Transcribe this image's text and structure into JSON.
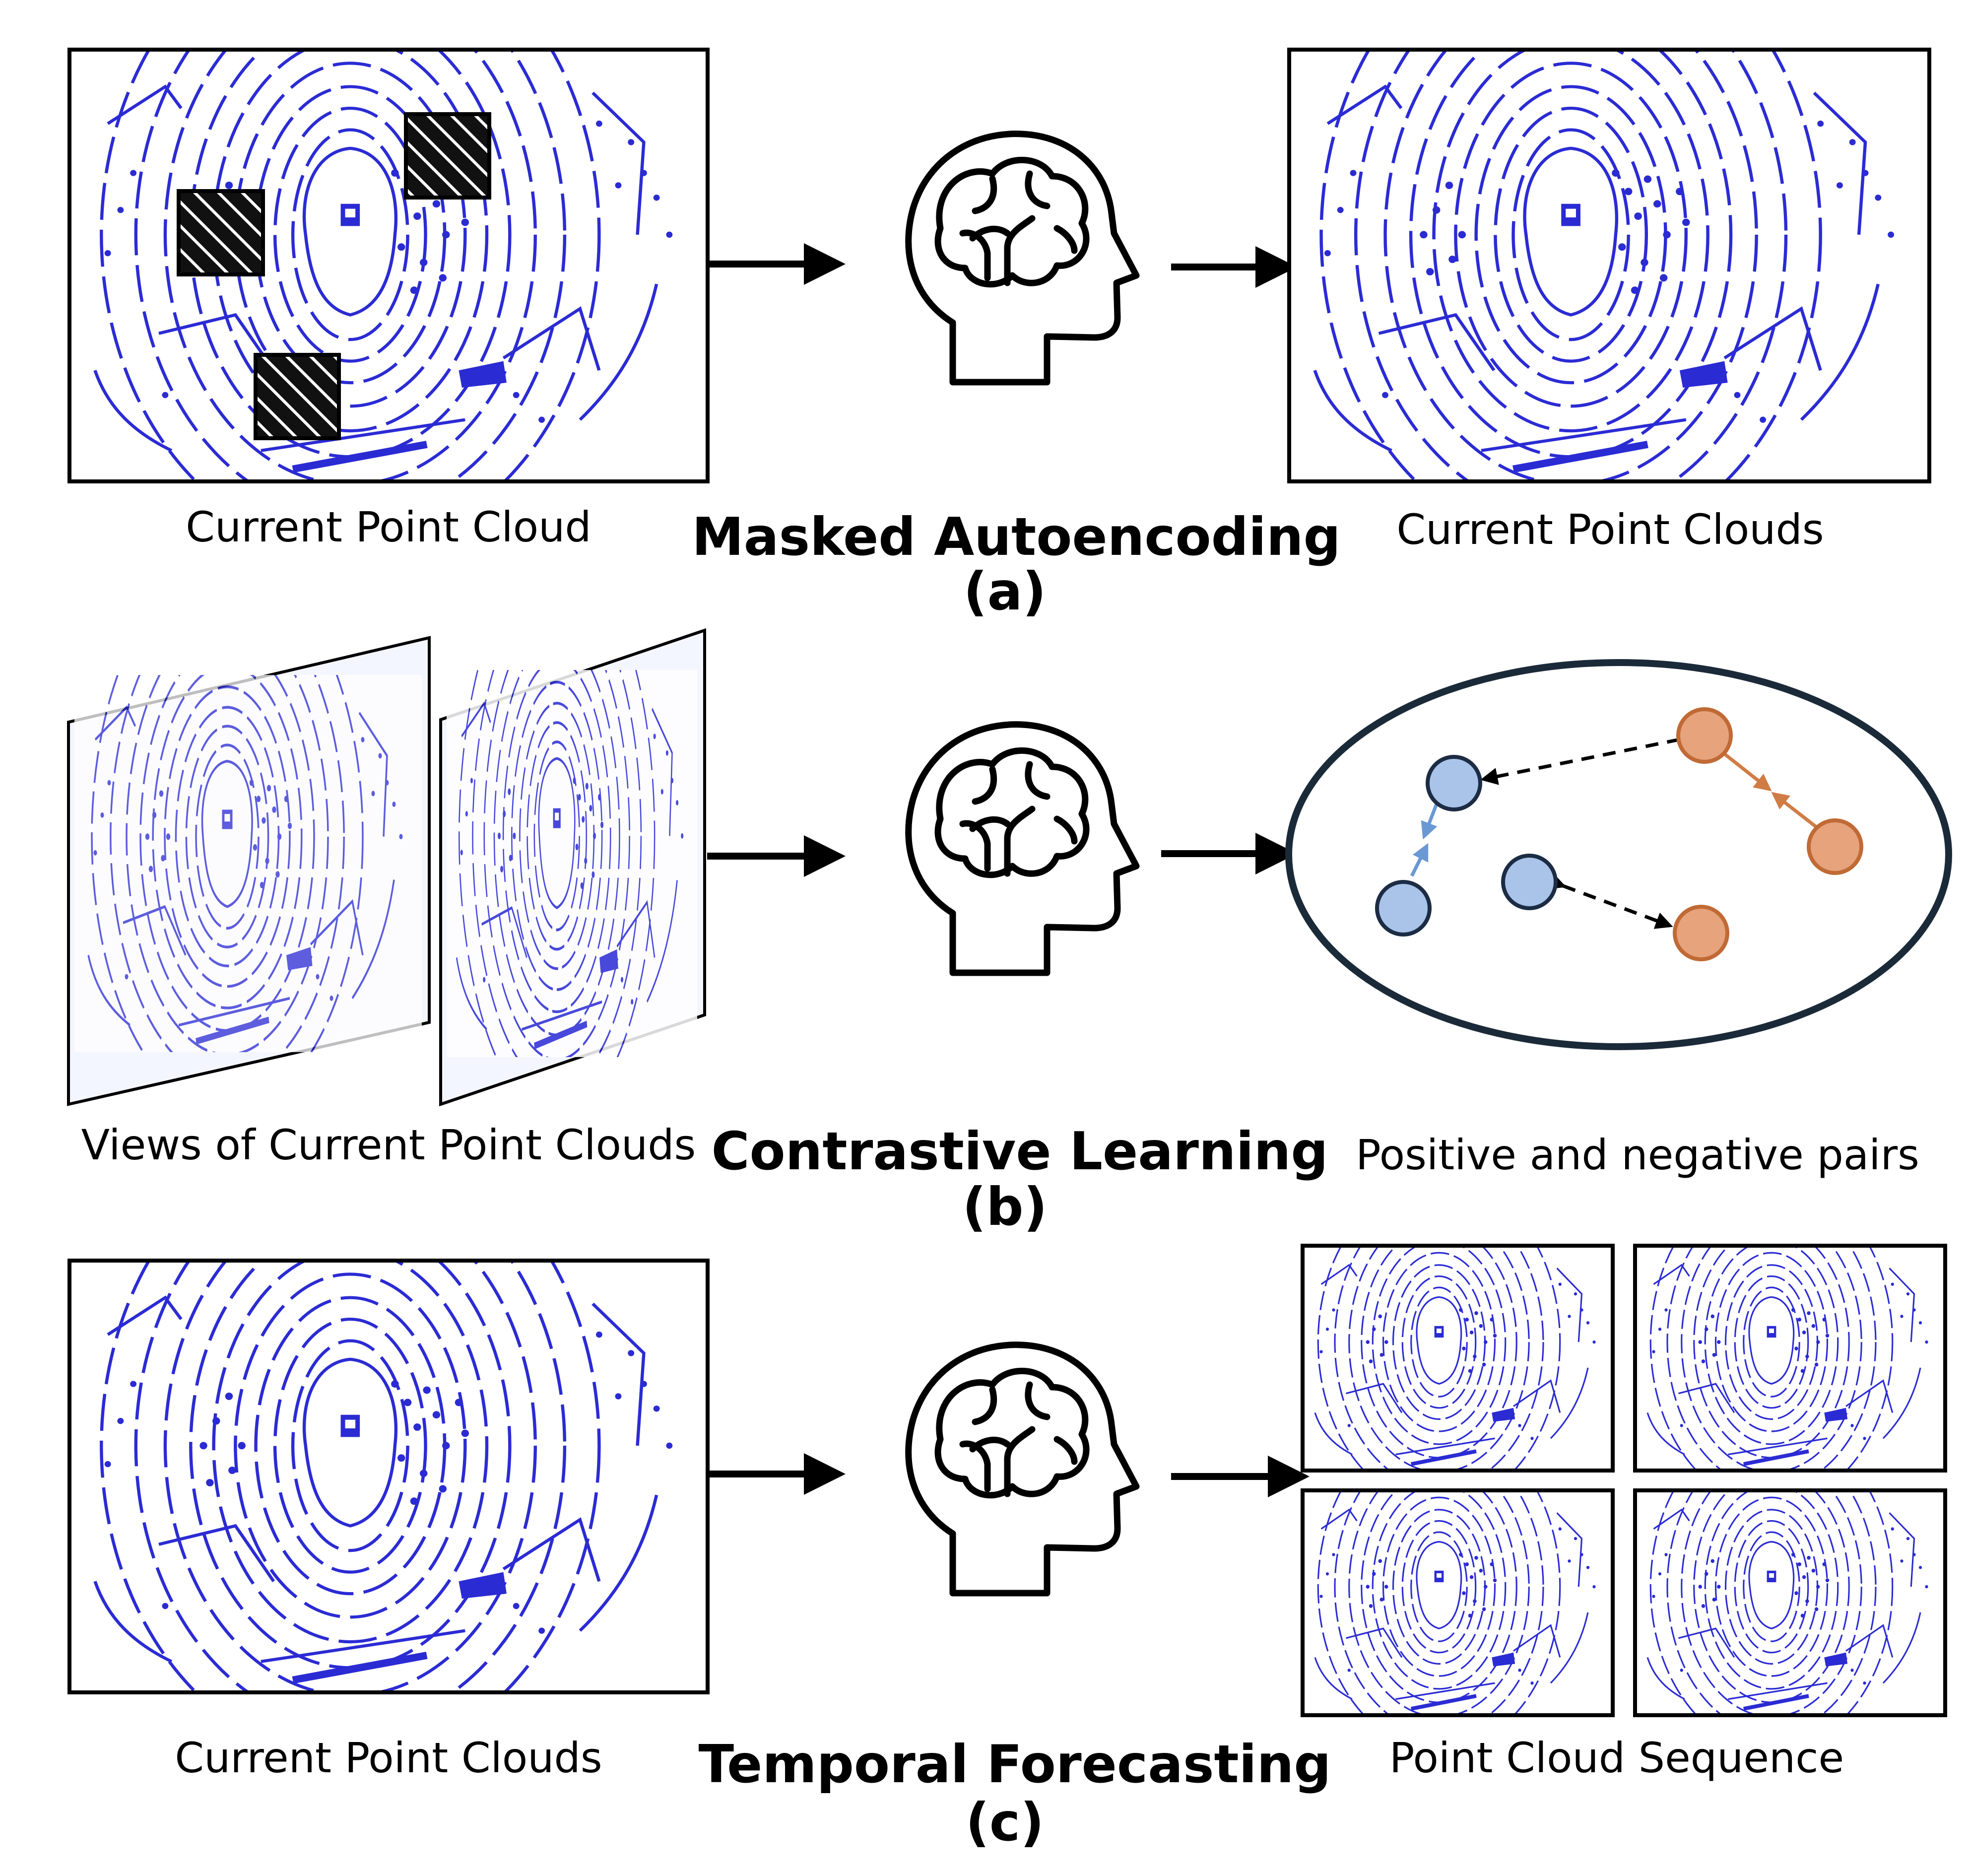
{
  "row_a": {
    "left_caption": "Current Point Cloud",
    "title": "Masked Autoencoding",
    "sublabel": "(a)",
    "right_caption": "Current Point Clouds"
  },
  "row_b": {
    "left_caption": "Views of Current Point Clouds",
    "title": "Contrastive Learning",
    "sublabel": "(b)",
    "right_caption": "Positive and negative pairs"
  },
  "row_c": {
    "left_caption": "Current Point Clouds",
    "title": "Temporal Forecasting",
    "sublabel": "(c)",
    "right_caption": "Point Cloud Sequence"
  },
  "colors": {
    "point_cloud": "#2b2bd4",
    "positive_blue": "#a9c4e8",
    "negative_orange": "#e6a37c",
    "ellipse_outline": "#1b2a38"
  },
  "icons": [
    "brain-head-icon",
    "mask-patch-hatch",
    "arrow-icon"
  ]
}
